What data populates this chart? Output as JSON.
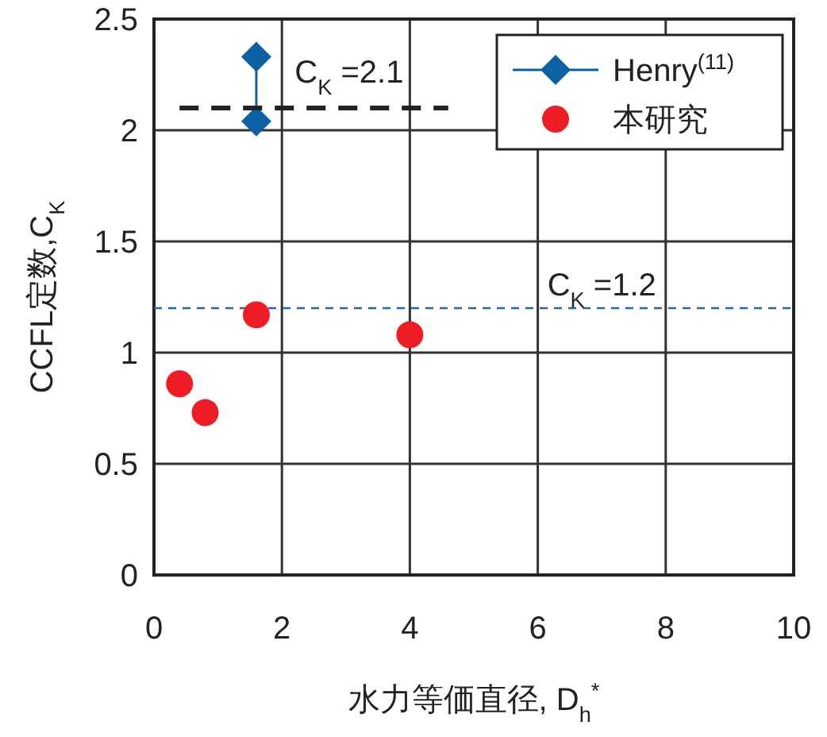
{
  "chart_data": {
    "type": "scatter",
    "xlabel": "水力等価直径, D$_{h}$$^{*}$",
    "ylabel": "CCFL定数,C$_{K}$",
    "xlim": [
      0,
      10
    ],
    "ylim": [
      0,
      2.5
    ],
    "xticks": [
      0,
      2,
      4,
      6,
      8,
      10
    ],
    "yticks": [
      0,
      0.5,
      1,
      1.5,
      2,
      2.5
    ],
    "grid": true,
    "legend": "top right",
    "series": [
      {
        "name": "Henry$^{(11)}$",
        "type": "line",
        "color": "#0a62a5",
        "marker": "diamond",
        "line_style": "solid",
        "x": [
          1.6,
          1.6
        ],
        "values": [
          2.33,
          2.04
        ]
      },
      {
        "name": "本研究",
        "color": "#ee1c24",
        "marker": "circle",
        "x": [
          0.4,
          0.8,
          1.6,
          4.0
        ],
        "values": [
          0.86,
          0.73,
          1.17,
          1.08
        ]
      },
      {
        "type": "line",
        "color": "#222222",
        "marker": "none",
        "line_style": "dashed",
        "x": [
          0.4,
          4.6
        ],
        "values": [
          2.1,
          2.1
        ]
      }
    ],
    "ref_lines": [
      {
        "axis": "y",
        "value": 1.2,
        "label": "C$_{K}$ =1.2",
        "color": "#1f6aa5",
        "line_style": "dashed"
      }
    ],
    "annotations": [
      {
        "text": "C$_{K}$ =2.1",
        "x": 2.2,
        "y": 2.1
      }
    ]
  }
}
